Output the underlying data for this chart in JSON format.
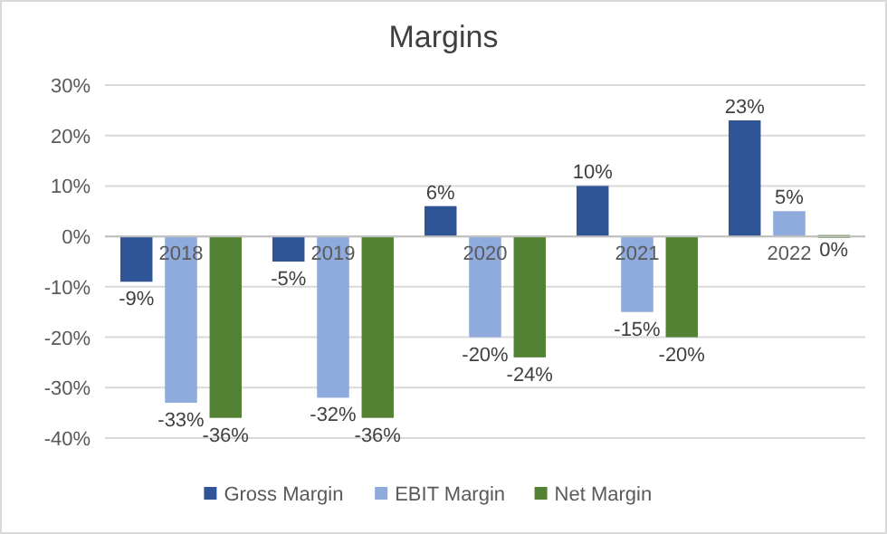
{
  "chart_data": {
    "type": "bar",
    "title": "Margins",
    "categories": [
      "2018",
      "2019",
      "2020",
      "2021",
      "2022"
    ],
    "series": [
      {
        "name": "Gross Margin",
        "color": "#2f5597",
        "values": [
          -9,
          -5,
          6,
          10,
          23
        ],
        "value_labels": [
          "-9%",
          "-5%",
          "6%",
          "10%",
          "23%"
        ]
      },
      {
        "name": "EBIT Margin",
        "color": "#8faadc",
        "values": [
          -33,
          -32,
          -20,
          -15,
          5
        ],
        "value_labels": [
          "-33%",
          "-32%",
          "-20%",
          "-15%",
          "5%"
        ]
      },
      {
        "name": "Net Margin",
        "color": "#548235",
        "values": [
          -36,
          -36,
          -24,
          -20,
          0
        ],
        "value_labels": [
          "-36%",
          "-36%",
          "-24%",
          "-20%",
          "0%"
        ]
      }
    ],
    "ylim": [
      -40,
      30
    ],
    "yticks": [
      {
        "value": -40,
        "label": "-40%"
      },
      {
        "value": -30,
        "label": "-30%"
      },
      {
        "value": -20,
        "label": "-20%"
      },
      {
        "value": -10,
        "label": "-10%"
      },
      {
        "value": 0,
        "label": "0%"
      },
      {
        "value": 10,
        "label": "10%"
      },
      {
        "value": 20,
        "label": "20%"
      },
      {
        "value": 30,
        "label": "30%"
      }
    ],
    "grid": "y",
    "legend": "bottom"
  }
}
